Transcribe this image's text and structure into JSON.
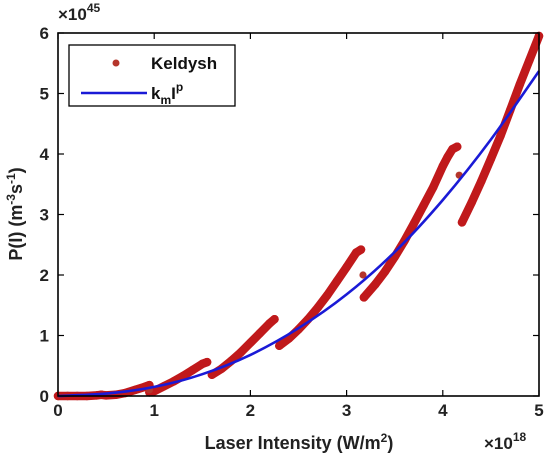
{
  "chart_data": {
    "type": "scatter",
    "xlabel": "Laser Intensity  (W/m²)",
    "xlabel_parts": {
      "base": "Laser Intensity  (W/m",
      "sup": "2",
      "close": ")"
    },
    "ylabel_parts": {
      "a": "P(I)  (m",
      "sup1": "-3",
      "b": "s",
      "sup2": "-1",
      "c": ")"
    },
    "x_multiplier": {
      "base": "×10",
      "exp": "18"
    },
    "y_multiplier": {
      "base": "×10",
      "exp": "45"
    },
    "xlim": [
      0,
      5
    ],
    "ylim": [
      0,
      6
    ],
    "xticks": [
      "0",
      "1",
      "2",
      "3",
      "4",
      "5"
    ],
    "yticks": [
      "0",
      "1",
      "2",
      "3",
      "4",
      "5",
      "6"
    ],
    "legend_position": "top-left",
    "series": [
      {
        "name": "Keldysh",
        "kind": "markers",
        "color": "#c0191b",
        "segments": [
          {
            "x": [
              0.0,
              0.1,
              0.2,
              0.3,
              0.4,
              0.45
            ],
            "y": [
              0.0,
              0.0,
              0.0,
              0.0,
              0.01,
              0.02
            ]
          },
          {
            "x": [
              0.45,
              0.5,
              0.6,
              0.7,
              0.8,
              0.9,
              0.95
            ],
            "y": [
              0.02,
              0.01,
              0.02,
              0.05,
              0.1,
              0.15,
              0.18
            ]
          },
          {
            "x": [
              0.95,
              1.0,
              1.1,
              1.2,
              1.3,
              1.4,
              1.5,
              1.55
            ],
            "y": [
              0.06,
              0.08,
              0.16,
              0.24,
              0.33,
              0.43,
              0.53,
              0.56
            ]
          },
          {
            "x": [
              1.6,
              1.7,
              1.8,
              1.9,
              2.0,
              2.1,
              2.2,
              2.25
            ],
            "y": [
              0.35,
              0.45,
              0.58,
              0.72,
              0.88,
              1.04,
              1.2,
              1.27
            ]
          },
          {
            "x": [
              2.3,
              2.4,
              2.5,
              2.6,
              2.7,
              2.8,
              2.9,
              3.0,
              3.1,
              3.15
            ],
            "y": [
              0.83,
              0.95,
              1.1,
              1.27,
              1.46,
              1.67,
              1.9,
              2.13,
              2.37,
              2.42
            ]
          },
          {
            "x": [
              3.18,
              3.3,
              3.4,
              3.5,
              3.6,
              3.7,
              3.8,
              3.9,
              4.0,
              4.05,
              4.1,
              4.15
            ],
            "y": [
              1.63,
              1.85,
              2.06,
              2.3,
              2.56,
              2.85,
              3.15,
              3.45,
              3.8,
              3.95,
              4.08,
              4.12
            ]
          },
          {
            "x": [
              4.2,
              4.3,
              4.4,
              4.5,
              4.6,
              4.7,
              4.8,
              4.9,
              5.0
            ],
            "y": [
              2.87,
              3.2,
              3.55,
              3.92,
              4.3,
              4.72,
              5.15,
              5.55,
              5.95
            ]
          }
        ],
        "isolated_points": [
          {
            "x": 0.95,
            "y": 0.1
          },
          {
            "x": 3.17,
            "y": 2.0
          },
          {
            "x": 4.17,
            "y": 3.65
          }
        ]
      },
      {
        "name": "k_m I^p",
        "legend_parts": {
          "k": "k",
          "m": "m",
          "I": "I",
          "p": "p"
        },
        "kind": "line",
        "color": "#1a1ad6",
        "x": [
          0.0,
          0.5,
          1.0,
          1.5,
          2.0,
          2.5,
          3.0,
          3.5,
          4.0,
          4.5,
          5.0
        ],
        "y": [
          0.0,
          0.04,
          0.15,
          0.36,
          0.68,
          1.12,
          1.68,
          2.38,
          3.24,
          4.24,
          5.37
        ]
      }
    ]
  }
}
